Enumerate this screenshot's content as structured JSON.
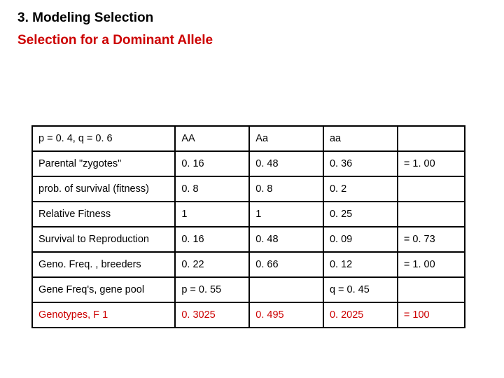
{
  "heading1": "3. Modeling Selection",
  "heading2": "Selection for a Dominant Allele",
  "table": {
    "rows": [
      {
        "c0": "p = 0. 4, q = 0. 6",
        "c1": "AA",
        "c2": "Aa",
        "c3": "aa",
        "c4": "",
        "red": false
      },
      {
        "c0": "Parental \"zygotes\"",
        "c1": "0. 16",
        "c2": "0. 48",
        "c3": "0. 36",
        "c4": "= 1. 00",
        "red": false
      },
      {
        "c0": "prob. of survival (fitness)",
        "c1": "0. 8",
        "c2": "0. 8",
        "c3": "0. 2",
        "c4": "",
        "red": false
      },
      {
        "c0": "Relative Fitness",
        "c1": "1",
        "c2": "1",
        "c3": "0. 25",
        "c4": "",
        "red": false
      },
      {
        "c0": "Survival to Reproduction",
        "c1": "0. 16",
        "c2": "0. 48",
        "c3": "0. 09",
        "c4": "= 0. 73",
        "red": false
      },
      {
        "c0": "Geno. Freq. , breeders",
        "c1": "0. 22",
        "c2": "0. 66",
        "c3": "0. 12",
        "c4": "= 1. 00",
        "red": false
      },
      {
        "c0": "Gene Freq's, gene pool",
        "c1": "p = 0. 55",
        "c2": "",
        "c3": "q = 0. 45",
        "c4": "",
        "red": false
      },
      {
        "c0": "Genotypes, F 1",
        "c1": "0. 3025",
        "c2": "0. 495",
        "c3": "0. 2025",
        "c4": "= 100",
        "red": true
      }
    ]
  },
  "colors": {
    "text": "#000000",
    "accent": "#cc0000",
    "border": "#000000",
    "background": "#ffffff"
  },
  "typography": {
    "heading_fontsize": 19,
    "cell_fontsize": 14.5,
    "font_family": "Arial"
  }
}
